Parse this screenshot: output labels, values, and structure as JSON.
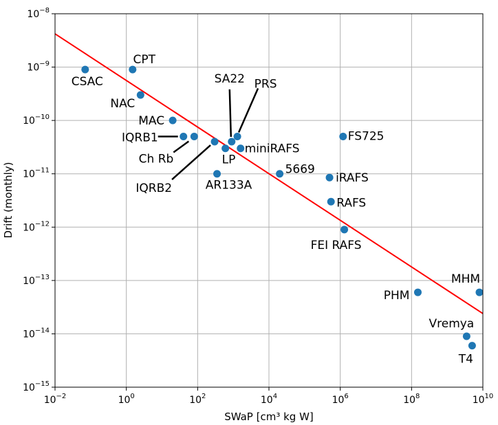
{
  "chart_data": {
    "type": "scatter",
    "xlabel": "SWaP [cm³ kg W]",
    "ylabel": "Drift (monthly)",
    "x_scale": "log",
    "y_scale": "log",
    "xlim": [
      0.01,
      10000000000
    ],
    "ylim": [
      1e-15,
      1e-08
    ],
    "x_ticks": [
      {
        "value": 0.01,
        "base": "10",
        "exp": "−2"
      },
      {
        "value": 1,
        "base": "10",
        "exp": "0"
      },
      {
        "value": 100,
        "base": "10",
        "exp": "2"
      },
      {
        "value": 10000,
        "base": "10",
        "exp": "4"
      },
      {
        "value": 1000000,
        "base": "10",
        "exp": "6"
      },
      {
        "value": 100000000,
        "base": "10",
        "exp": "8"
      },
      {
        "value": 10000000000,
        "base": "10",
        "exp": "10"
      }
    ],
    "y_ticks": [
      {
        "value": 1e-08,
        "base": "10",
        "exp": "−8"
      },
      {
        "value": 1e-09,
        "base": "10",
        "exp": "−9"
      },
      {
        "value": 1e-10,
        "base": "10",
        "exp": "−10"
      },
      {
        "value": 1e-11,
        "base": "10",
        "exp": "−11"
      },
      {
        "value": 1e-12,
        "base": "10",
        "exp": "−12"
      },
      {
        "value": 1e-13,
        "base": "10",
        "exp": "−13"
      },
      {
        "value": 1e-14,
        "base": "10",
        "exp": "−14"
      },
      {
        "value": 1e-15,
        "base": "10",
        "exp": "−15"
      }
    ],
    "grid": true,
    "series": [
      {
        "color": "#1f77b4",
        "points": [
          {
            "label": "CSAC",
            "x": 0.07,
            "y": 9e-10
          },
          {
            "label": "CPT",
            "x": 1.5,
            "y": 9e-10
          },
          {
            "label": "NAC",
            "x": 2.5,
            "y": 3e-10
          },
          {
            "label": "MAC",
            "x": 20,
            "y": 1e-10
          },
          {
            "label": "IQRB1",
            "x": 40,
            "y": 5e-11
          },
          {
            "label": "Ch Rb",
            "x": 80,
            "y": 5e-11
          },
          {
            "label": "IQRB2",
            "x": 300,
            "y": 4e-11
          },
          {
            "label": "AR133A",
            "x": 350,
            "y": 1e-11
          },
          {
            "label": "LP",
            "x": 600,
            "y": 3e-11
          },
          {
            "label": "SA22",
            "x": 900,
            "y": 4e-11
          },
          {
            "label": "PRS",
            "x": 1300,
            "y": 5e-11
          },
          {
            "label": "miniRAFS",
            "x": 1600,
            "y": 3e-11
          },
          {
            "label": "5669",
            "x": 20000,
            "y": 1e-11
          },
          {
            "label": "FS725",
            "x": 1200000,
            "y": 5e-11
          },
          {
            "label": "iRAFS",
            "x": 500000,
            "y": 8.5e-12
          },
          {
            "label": "RAFS",
            "x": 550000,
            "y": 3e-12
          },
          {
            "label": "FEI RAFS",
            "x": 1300000,
            "y": 9e-13
          },
          {
            "label": "PHM",
            "x": 150000000,
            "y": 6e-14
          },
          {
            "label": "MHM",
            "x": 8000000000,
            "y": 6e-14
          },
          {
            "label": "Vremya",
            "x": 3500000000,
            "y": 9e-15
          },
          {
            "label": "T4",
            "x": 5000000000,
            "y": 6e-15
          }
        ]
      }
    ],
    "fit_line": {
      "color": "#ff0000",
      "x": [
        0.01,
        10000000000
      ],
      "y": [
        4.2e-09,
        2.4e-14
      ]
    }
  }
}
